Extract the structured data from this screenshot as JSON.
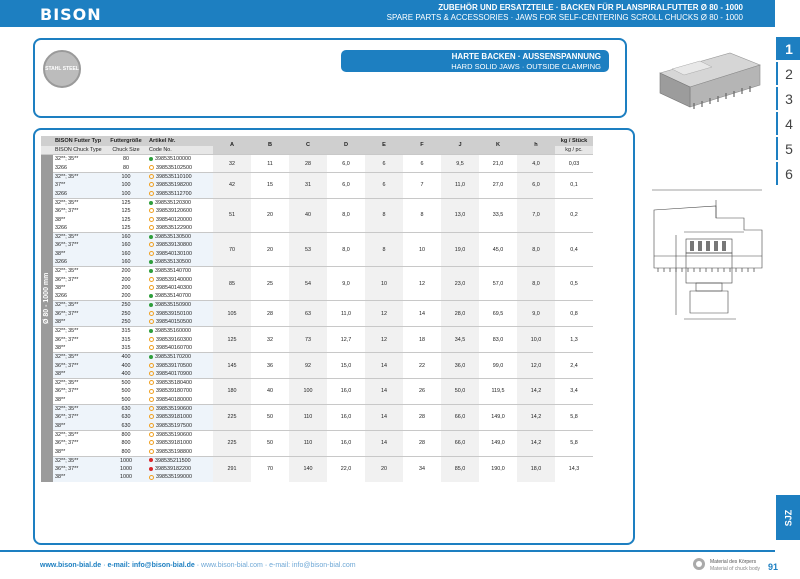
{
  "header": {
    "logo": "BISON",
    "title_de": "ZUBEHÖR UND ERSATZTEILE · BACKEN FÜR PLANSPIRALFUTTER Ø 80 - 1000",
    "title_en": "SPARE PARTS & ACCESSORIES · JAWS FOR SELF-CENTERING SCROLL CHUCKS Ø 80 - 1000"
  },
  "side_tabs": [
    "1",
    "2",
    "3",
    "4",
    "5",
    "6"
  ],
  "side_label": "SJZ",
  "stamp": "STAHL STEEL",
  "section": {
    "title_de": "HARTE BACKEN · AUSSENSPANNUNG",
    "title_en": "HARD SOLID JAWS · OUTSIDE CLAMPING"
  },
  "table": {
    "vertical_label": "Ø 80 - 1000 mm",
    "head_de": [
      "BISON Futter Typ",
      "Futtergröße",
      "Artikel Nr."
    ],
    "head_en": [
      "BISON Chuck Type",
      "Chuck Size",
      "Code No."
    ],
    "dim_cols": [
      "A",
      "B",
      "C",
      "D",
      "E",
      "F",
      "J",
      "K",
      "h"
    ],
    "kg_de": "kg / Stück",
    "kg_en": "kg / pc.",
    "groups": [
      {
        "rows": [
          [
            "32**; 35**",
            "80",
            "398535100000",
            "g"
          ],
          [
            "3266",
            "80",
            "398535102500",
            "o"
          ]
        ],
        "dims": [
          "32",
          "11",
          "28",
          "6,0",
          "6",
          "6",
          "9,5",
          "21,0",
          "4,0"
        ],
        "kg": "0,03"
      },
      {
        "rows": [
          [
            "32**; 35**",
            "100",
            "398535110100",
            "o"
          ],
          [
            "37**",
            "100",
            "398535198200",
            "o"
          ],
          [
            "3266",
            "100",
            "398535112700",
            "o"
          ]
        ],
        "dims": [
          "42",
          "15",
          "31",
          "6,0",
          "6",
          "7",
          "11,0",
          "27,0",
          "6,0"
        ],
        "kg": "0,1"
      },
      {
        "rows": [
          [
            "32**; 35**",
            "125",
            "398535120300",
            "g"
          ],
          [
            "36**; 37**",
            "125",
            "398539120600",
            "o"
          ],
          [
            "38**",
            "125",
            "398540120000",
            "o"
          ],
          [
            "3266",
            "125",
            "398535122900",
            "o"
          ]
        ],
        "dims": [
          "51",
          "20",
          "40",
          "8,0",
          "8",
          "8",
          "13,0",
          "33,5",
          "7,0"
        ],
        "kg": "0,2"
      },
      {
        "rows": [
          [
            "32**; 35**",
            "160",
            "398535130500",
            "g"
          ],
          [
            "36**; 37**",
            "160",
            "398539130800",
            "o"
          ],
          [
            "38**",
            "160",
            "398540130100",
            "o"
          ],
          [
            "3266",
            "160",
            "398535130500",
            "g"
          ]
        ],
        "dims": [
          "70",
          "20",
          "53",
          "8,0",
          "8",
          "10",
          "19,0",
          "45,0",
          "8,0"
        ],
        "kg": "0,4"
      },
      {
        "rows": [
          [
            "32**; 35**",
            "200",
            "398535140700",
            "g"
          ],
          [
            "36**; 37**",
            "200",
            "398539140000",
            "o"
          ],
          [
            "38**",
            "200",
            "398540140300",
            "o"
          ],
          [
            "3266",
            "200",
            "398535140700",
            "g"
          ]
        ],
        "dims": [
          "85",
          "25",
          "54",
          "9,0",
          "10",
          "12",
          "23,0",
          "57,0",
          "8,0"
        ],
        "kg": "0,5"
      },
      {
        "rows": [
          [
            "32**; 35**",
            "250",
            "398535150900",
            "g"
          ],
          [
            "36**; 37**",
            "250",
            "398539150100",
            "o"
          ],
          [
            "38**",
            "250",
            "398540150500",
            "o"
          ]
        ],
        "dims": [
          "105",
          "28",
          "63",
          "11,0",
          "12",
          "14",
          "28,0",
          "69,5",
          "9,0"
        ],
        "kg": "0,8"
      },
      {
        "rows": [
          [
            "32**; 35**",
            "315",
            "398535160000",
            "g"
          ],
          [
            "36**; 37**",
            "315",
            "398539160300",
            "o"
          ],
          [
            "38**",
            "315",
            "398540160700",
            "o"
          ]
        ],
        "dims": [
          "125",
          "32",
          "73",
          "12,7",
          "12",
          "18",
          "34,5",
          "83,0",
          "10,0"
        ],
        "kg": "1,3"
      },
      {
        "rows": [
          [
            "32**; 35**",
            "400",
            "398535170200",
            "g"
          ],
          [
            "36**; 37**",
            "400",
            "398539170500",
            "o"
          ],
          [
            "38**",
            "400",
            "398540170900",
            "o"
          ]
        ],
        "dims": [
          "145",
          "36",
          "92",
          "15,0",
          "14",
          "22",
          "36,0",
          "99,0",
          "12,0"
        ],
        "kg": "2,4"
      },
      {
        "rows": [
          [
            "32**; 35**",
            "500",
            "398535180400",
            "o"
          ],
          [
            "36**; 37**",
            "500",
            "398539180700",
            "o"
          ],
          [
            "38**",
            "500",
            "398540180000",
            "o"
          ]
        ],
        "dims": [
          "180",
          "40",
          "100",
          "16,0",
          "14",
          "26",
          "50,0",
          "119,5",
          "14,2"
        ],
        "kg": "3,4"
      },
      {
        "rows": [
          [
            "32**; 35**",
            "630",
            "398535190600",
            "o"
          ],
          [
            "36**; 37**",
            "630",
            "398539181000",
            "o"
          ],
          [
            "38**",
            "630",
            "398535197500",
            "o"
          ]
        ],
        "dims": [
          "225",
          "50",
          "110",
          "16,0",
          "14",
          "28",
          "66,0",
          "149,0",
          "14,2"
        ],
        "kg": "5,8"
      },
      {
        "rows": [
          [
            "32**; 35**",
            "800",
            "398535190600",
            "o"
          ],
          [
            "36**; 37**",
            "800",
            "398539181000",
            "o"
          ],
          [
            "38**",
            "800",
            "398535198800",
            "o"
          ]
        ],
        "dims": [
          "225",
          "50",
          "110",
          "16,0",
          "14",
          "28",
          "66,0",
          "149,0",
          "14,2"
        ],
        "kg": "5,8"
      },
      {
        "rows": [
          [
            "32**; 35**",
            "1000",
            "398535211500",
            "r"
          ],
          [
            "36**; 37**",
            "1000",
            "398539182200",
            "r"
          ],
          [
            "38**",
            "1000",
            "398535199000",
            "o"
          ]
        ],
        "dims": [
          "291",
          "70",
          "140",
          "22,0",
          "20",
          "34",
          "85,0",
          "190,0",
          "18,0"
        ],
        "kg": "14,3"
      }
    ]
  },
  "footer": {
    "web1": "www.bison-bial.de",
    "email1": "e-mail: info@bison-bial.de",
    "web2": "www.bison-bial.com",
    "email2": "e-mail: info@bison-bial.com",
    "material_de": "Material des Körpers",
    "material_en": "Material of chuck body",
    "page": "91"
  },
  "colors": {
    "accent": "#1d7fc1",
    "dot_green": "#2e9e3c",
    "dot_orange": "#f0a020",
    "dot_red": "#d9262a"
  }
}
